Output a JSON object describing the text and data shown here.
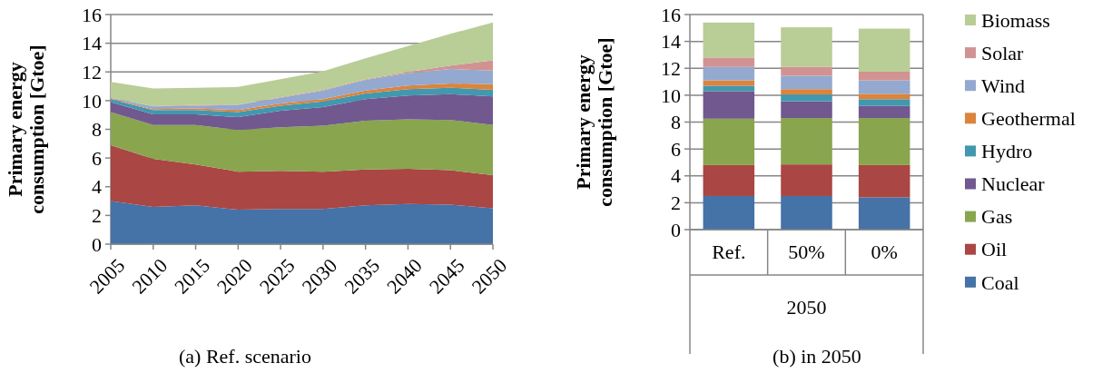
{
  "chart_data": [
    {
      "type": "area",
      "stacked": true,
      "title": "(a) Ref. scenario",
      "ylabel": "Primary energy consumption [Gtoe]",
      "x": [
        2005,
        2010,
        2015,
        2020,
        2025,
        2030,
        2035,
        2040,
        2045,
        2050
      ],
      "xlim": [
        2005,
        2050
      ],
      "xticks": [
        2005,
        2010,
        2015,
        2020,
        2025,
        2030,
        2035,
        2040,
        2045,
        2050
      ],
      "ylim": [
        0,
        16
      ],
      "yticks": [
        0,
        2,
        4,
        6,
        8,
        10,
        12,
        14,
        16
      ],
      "grid": "y",
      "series": [
        {
          "color": "#4572a7",
          "values": [
            3.0,
            2.6,
            2.7,
            2.4,
            2.45,
            2.45,
            2.7,
            2.8,
            2.75,
            2.5
          ]
        },
        {
          "color": "#aa4643",
          "values": [
            3.9,
            3.35,
            2.85,
            2.65,
            2.65,
            2.6,
            2.5,
            2.45,
            2.4,
            2.3
          ]
        },
        {
          "color": "#89a54e",
          "values": [
            2.3,
            2.35,
            2.75,
            2.9,
            3.05,
            3.2,
            3.4,
            3.45,
            3.5,
            3.5
          ]
        },
        {
          "color": "#71588f",
          "values": [
            0.7,
            0.75,
            0.75,
            0.9,
            1.15,
            1.3,
            1.5,
            1.65,
            1.8,
            2.0
          ]
        },
        {
          "color": "#4198af",
          "values": [
            0.2,
            0.3,
            0.3,
            0.35,
            0.35,
            0.4,
            0.4,
            0.45,
            0.45,
            0.45
          ]
        },
        {
          "color": "#db843d",
          "values": [
            0.05,
            0.05,
            0.1,
            0.15,
            0.15,
            0.15,
            0.2,
            0.25,
            0.3,
            0.4
          ]
        },
        {
          "color": "#93a9cf",
          "values": [
            0.05,
            0.2,
            0.2,
            0.35,
            0.4,
            0.6,
            0.75,
            0.85,
            1.0,
            0.95
          ]
        },
        {
          "color": "#d19392",
          "values": [
            0,
            0.02,
            0.05,
            0.02,
            0.05,
            0.05,
            0.05,
            0.1,
            0.25,
            0.7
          ]
        },
        {
          "color": "#b9cd96",
          "values": [
            1.1,
            1.23,
            1.2,
            1.23,
            1.25,
            1.3,
            1.45,
            1.8,
            2.2,
            2.65
          ]
        }
      ]
    },
    {
      "type": "bar",
      "stacked": true,
      "title": "(b) in 2050",
      "ylabel": "Primary energy consumption [Gtoe]",
      "xlabel": "2050",
      "categories": [
        "Ref.",
        "50%",
        "0%"
      ],
      "ylim": [
        0,
        16
      ],
      "yticks": [
        0,
        2,
        4,
        6,
        8,
        10,
        12,
        14,
        16
      ],
      "grid": "y",
      "legend": "right",
      "series": [
        {
          "name": "Coal",
          "color": "#4572a7",
          "values": [
            2.5,
            2.5,
            2.4
          ]
        },
        {
          "name": "Oil",
          "color": "#aa4643",
          "values": [
            2.3,
            2.35,
            2.4
          ]
        },
        {
          "name": "Gas",
          "color": "#89a54e",
          "values": [
            3.45,
            3.45,
            3.5
          ]
        },
        {
          "name": "Nuclear",
          "color": "#71588f",
          "values": [
            2.05,
            1.25,
            0.9
          ]
        },
        {
          "name": "Hydro",
          "color": "#4198af",
          "values": [
            0.4,
            0.5,
            0.5
          ]
        },
        {
          "name": "Geothermal",
          "color": "#db843d",
          "values": [
            0.4,
            0.4,
            0.4
          ]
        },
        {
          "name": "Wind",
          "color": "#93a9cf",
          "values": [
            1.0,
            1.0,
            1.0
          ]
        },
        {
          "name": "Solar",
          "color": "#d19392",
          "values": [
            0.7,
            0.65,
            0.65
          ]
        },
        {
          "name": "Biomass",
          "color": "#b9cd96",
          "values": [
            2.6,
            2.95,
            3.2
          ]
        }
      ]
    }
  ]
}
